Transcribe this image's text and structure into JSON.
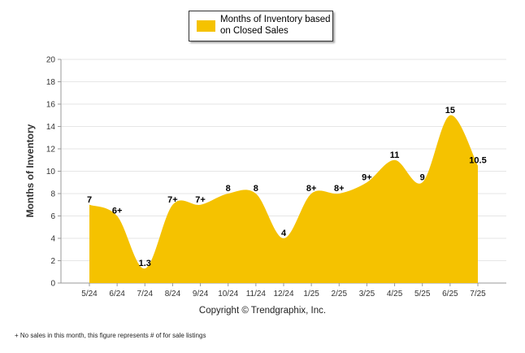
{
  "legend": {
    "label": "Months of Inventory based on Closed Sales"
  },
  "copyright": "Copyright © Trendgraphix, Inc.",
  "footnote": "+ No sales in this month, this figure represents # of for sale listings",
  "chart_data": {
    "type": "area",
    "ylabel": "Months of Inventory",
    "xlabel": "",
    "ylim": [
      0,
      20
    ],
    "yticks": [
      0,
      2,
      4,
      6,
      8,
      10,
      12,
      14,
      16,
      18,
      20
    ],
    "grid": true,
    "legend_placement": "top-center",
    "fill_color": "#F5C200",
    "categories": [
      "5/24",
      "6/24",
      "7/24",
      "8/24",
      "9/24",
      "10/24",
      "11/24",
      "12/24",
      "1/25",
      "2/25",
      "3/25",
      "4/25",
      "5/25",
      "6/25",
      "7/25"
    ],
    "series": [
      {
        "name": "Months of Inventory based on Closed Sales",
        "values": [
          7,
          6,
          1.3,
          7,
          7,
          8,
          8,
          4,
          8,
          8,
          9,
          11,
          9,
          15,
          10.5
        ],
        "data_labels": [
          "7",
          "6+",
          "1.3",
          "7+",
          "7+",
          "8",
          "8",
          "4",
          "8+",
          "8+",
          "9+",
          "11",
          "9",
          "15",
          "10.5"
        ]
      }
    ]
  }
}
